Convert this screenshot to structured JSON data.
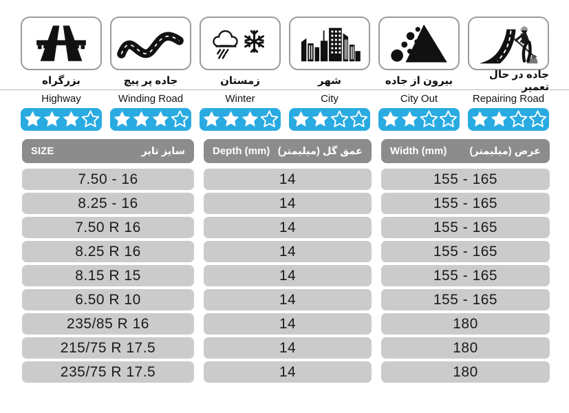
{
  "colors": {
    "star_bar": "#29abe2",
    "header_bg": "#8c8c8c",
    "row_bg": "#cbcbcb"
  },
  "traits": [
    {
      "icon": "highway-icon",
      "label_fa": "بزرگراه",
      "label_en": "Highway",
      "rating": 3,
      "rating_max": 4
    },
    {
      "icon": "winding-road-icon",
      "label_fa": "جاده پر پیچ",
      "label_en": "Winding Road",
      "rating": 3,
      "rating_max": 4
    },
    {
      "icon": "winter-icon",
      "label_fa": "زمستان",
      "label_en": "Winter",
      "rating": 3,
      "rating_max": 4
    },
    {
      "icon": "city-icon",
      "label_fa": "شهر",
      "label_en": "City",
      "rating": 2,
      "rating_max": 4
    },
    {
      "icon": "falling-rocks-icon",
      "label_fa": "بیرون از جاده",
      "label_en": "City Out",
      "rating": 2,
      "rating_max": 4
    },
    {
      "icon": "road-repair-icon",
      "label_fa": "جاده در حال تعمیر",
      "label_en": "Repairing Road",
      "rating": 2,
      "rating_max": 4
    }
  ],
  "table": {
    "headers": [
      {
        "en": "SIZE",
        "fa": "سایز تایر"
      },
      {
        "en": "Depth (mm)",
        "fa": "عمق گل (میلیمتر)"
      },
      {
        "en": "Width (mm)",
        "fa": "عرض (میلیمتر)"
      }
    ],
    "rows": [
      {
        "size": "7.50 - 16",
        "depth": "14",
        "width": "155 - 165"
      },
      {
        "size": "8.25 - 16",
        "depth": "14",
        "width": "155 - 165"
      },
      {
        "size": "7.50 R 16",
        "depth": "14",
        "width": "155 - 165"
      },
      {
        "size": "8.25 R 16",
        "depth": "14",
        "width": "155 - 165"
      },
      {
        "size": "8.15 R 15",
        "depth": "14",
        "width": "155 - 165"
      },
      {
        "size": "6.50 R 10",
        "depth": "14",
        "width": "155 - 165"
      },
      {
        "size": "235/85 R 16",
        "depth": "14",
        "width": "180"
      },
      {
        "size": "215/75 R 17.5",
        "depth": "14",
        "width": "180"
      },
      {
        "size": "235/75 R 17.5",
        "depth": "14",
        "width": "180"
      }
    ]
  },
  "chart_data": [
    {
      "type": "bar",
      "title": "Tire terrain suitability (stars out of 4)",
      "categories": [
        "Highway",
        "Winding Road",
        "Winter",
        "City",
        "City Out",
        "Repairing Road"
      ],
      "values": [
        3,
        3,
        3,
        2,
        2,
        2
      ],
      "ylim": [
        0,
        4
      ],
      "legend_position": "none"
    },
    {
      "type": "table",
      "columns": [
        "SIZE",
        "Depth (mm)",
        "Width (mm)"
      ],
      "rows": [
        [
          "7.50 - 16",
          "14",
          "155 - 165"
        ],
        [
          "8.25 - 16",
          "14",
          "155 - 165"
        ],
        [
          "7.50 R 16",
          "14",
          "155 - 165"
        ],
        [
          "8.25 R 16",
          "14",
          "155 - 165"
        ],
        [
          "8.15 R 15",
          "14",
          "155 - 165"
        ],
        [
          "6.50 R 10",
          "14",
          "155 - 165"
        ],
        [
          "235/85 R 16",
          "14",
          "180"
        ],
        [
          "215/75 R 17.5",
          "14",
          "180"
        ],
        [
          "235/75 R 17.5",
          "14",
          "180"
        ]
      ]
    }
  ]
}
